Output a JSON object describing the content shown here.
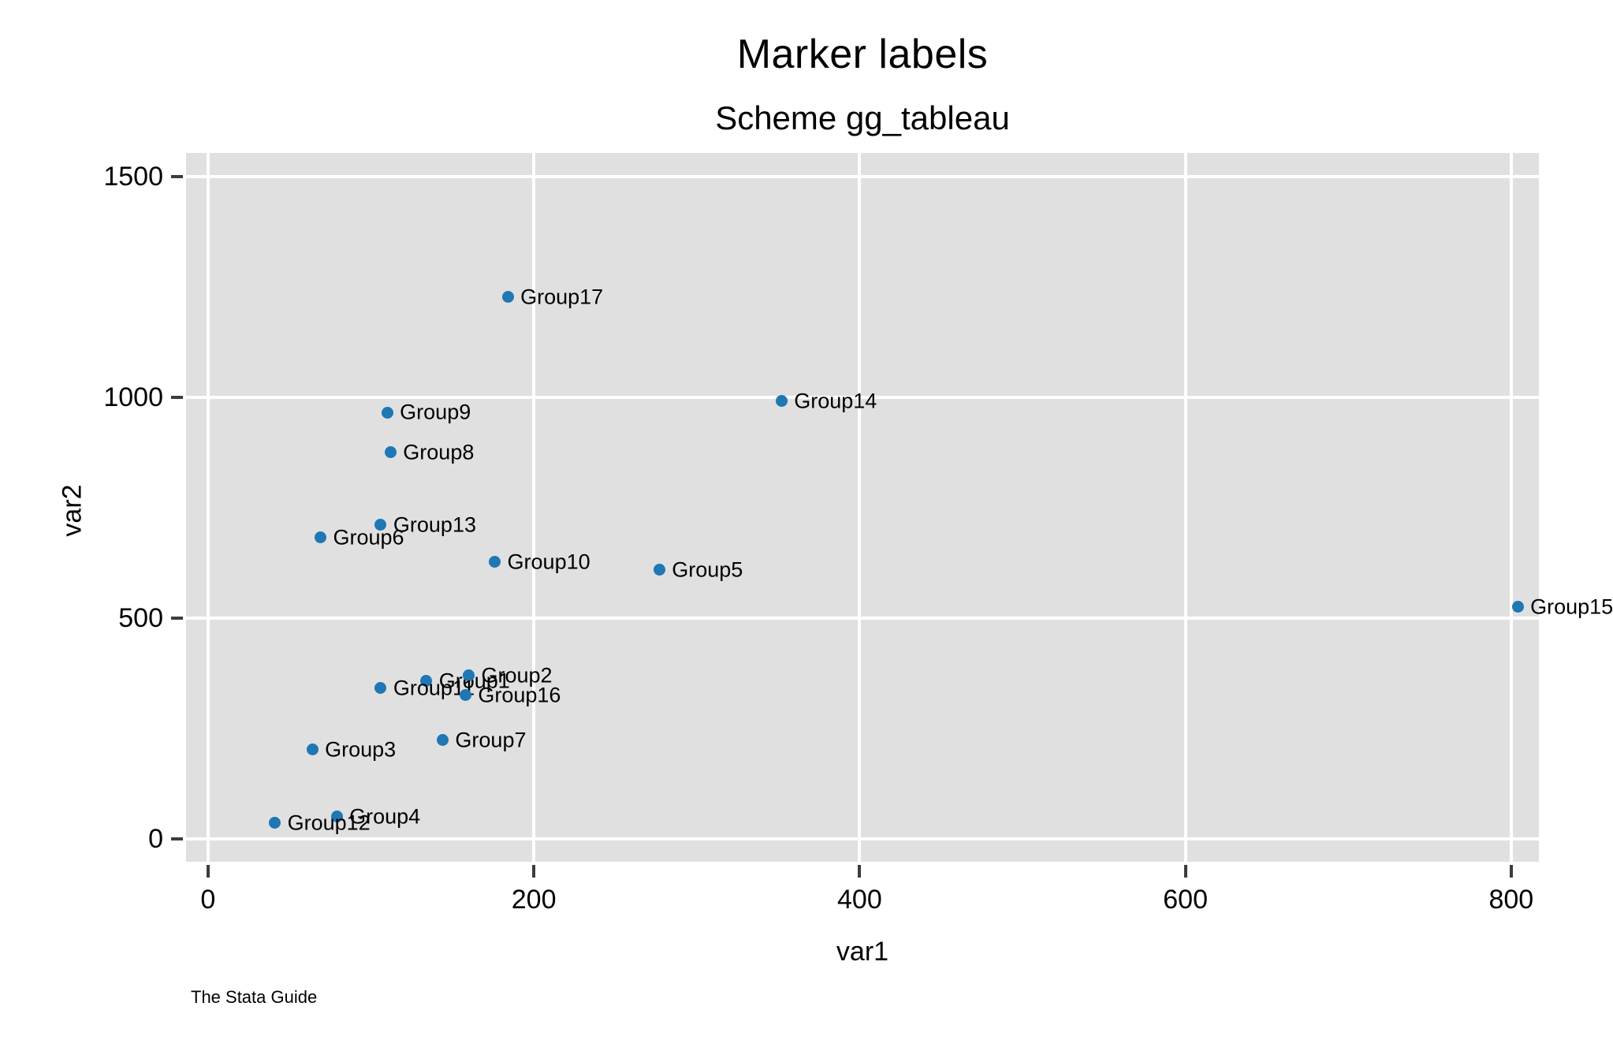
{
  "header": {
    "title": "Marker labels",
    "subtitle": "Scheme gg_tableau"
  },
  "footer": {
    "credit": "The Stata Guide"
  },
  "chart_data": {
    "type": "scatter",
    "title": "Marker labels",
    "subtitle": "Scheme gg_tableau",
    "xlabel": "var1",
    "ylabel": "var2",
    "xlim": [
      -13.5,
      817
    ],
    "ylim": [
      -52,
      1553
    ],
    "xticks": [
      0,
      200,
      400,
      600,
      800
    ],
    "yticks": [
      0,
      500,
      1000,
      1500
    ],
    "grid": true,
    "legend": "none",
    "plot_bg": "#e0e0e0",
    "marker_color": "#1f77b4",
    "points": [
      {
        "label": "Group1",
        "x": 134,
        "y": 357
      },
      {
        "label": "Group2",
        "x": 160,
        "y": 370
      },
      {
        "label": "Group3",
        "x": 64,
        "y": 202
      },
      {
        "label": "Group4",
        "x": 79,
        "y": 50
      },
      {
        "label": "Group5",
        "x": 277,
        "y": 609
      },
      {
        "label": "Group6",
        "x": 69,
        "y": 682
      },
      {
        "label": "Group7",
        "x": 144,
        "y": 223
      },
      {
        "label": "Group8",
        "x": 112,
        "y": 875
      },
      {
        "label": "Group9",
        "x": 110,
        "y": 965
      },
      {
        "label": "Group10",
        "x": 176,
        "y": 627
      },
      {
        "label": "Group11",
        "x": 106,
        "y": 341
      },
      {
        "label": "Group12",
        "x": 41,
        "y": 36
      },
      {
        "label": "Group13",
        "x": 106,
        "y": 711
      },
      {
        "label": "Group14",
        "x": 352,
        "y": 991
      },
      {
        "label": "Group15",
        "x": 804,
        "y": 525
      },
      {
        "label": "Group16",
        "x": 158,
        "y": 325
      },
      {
        "label": "Group17",
        "x": 184,
        "y": 1227
      }
    ]
  }
}
